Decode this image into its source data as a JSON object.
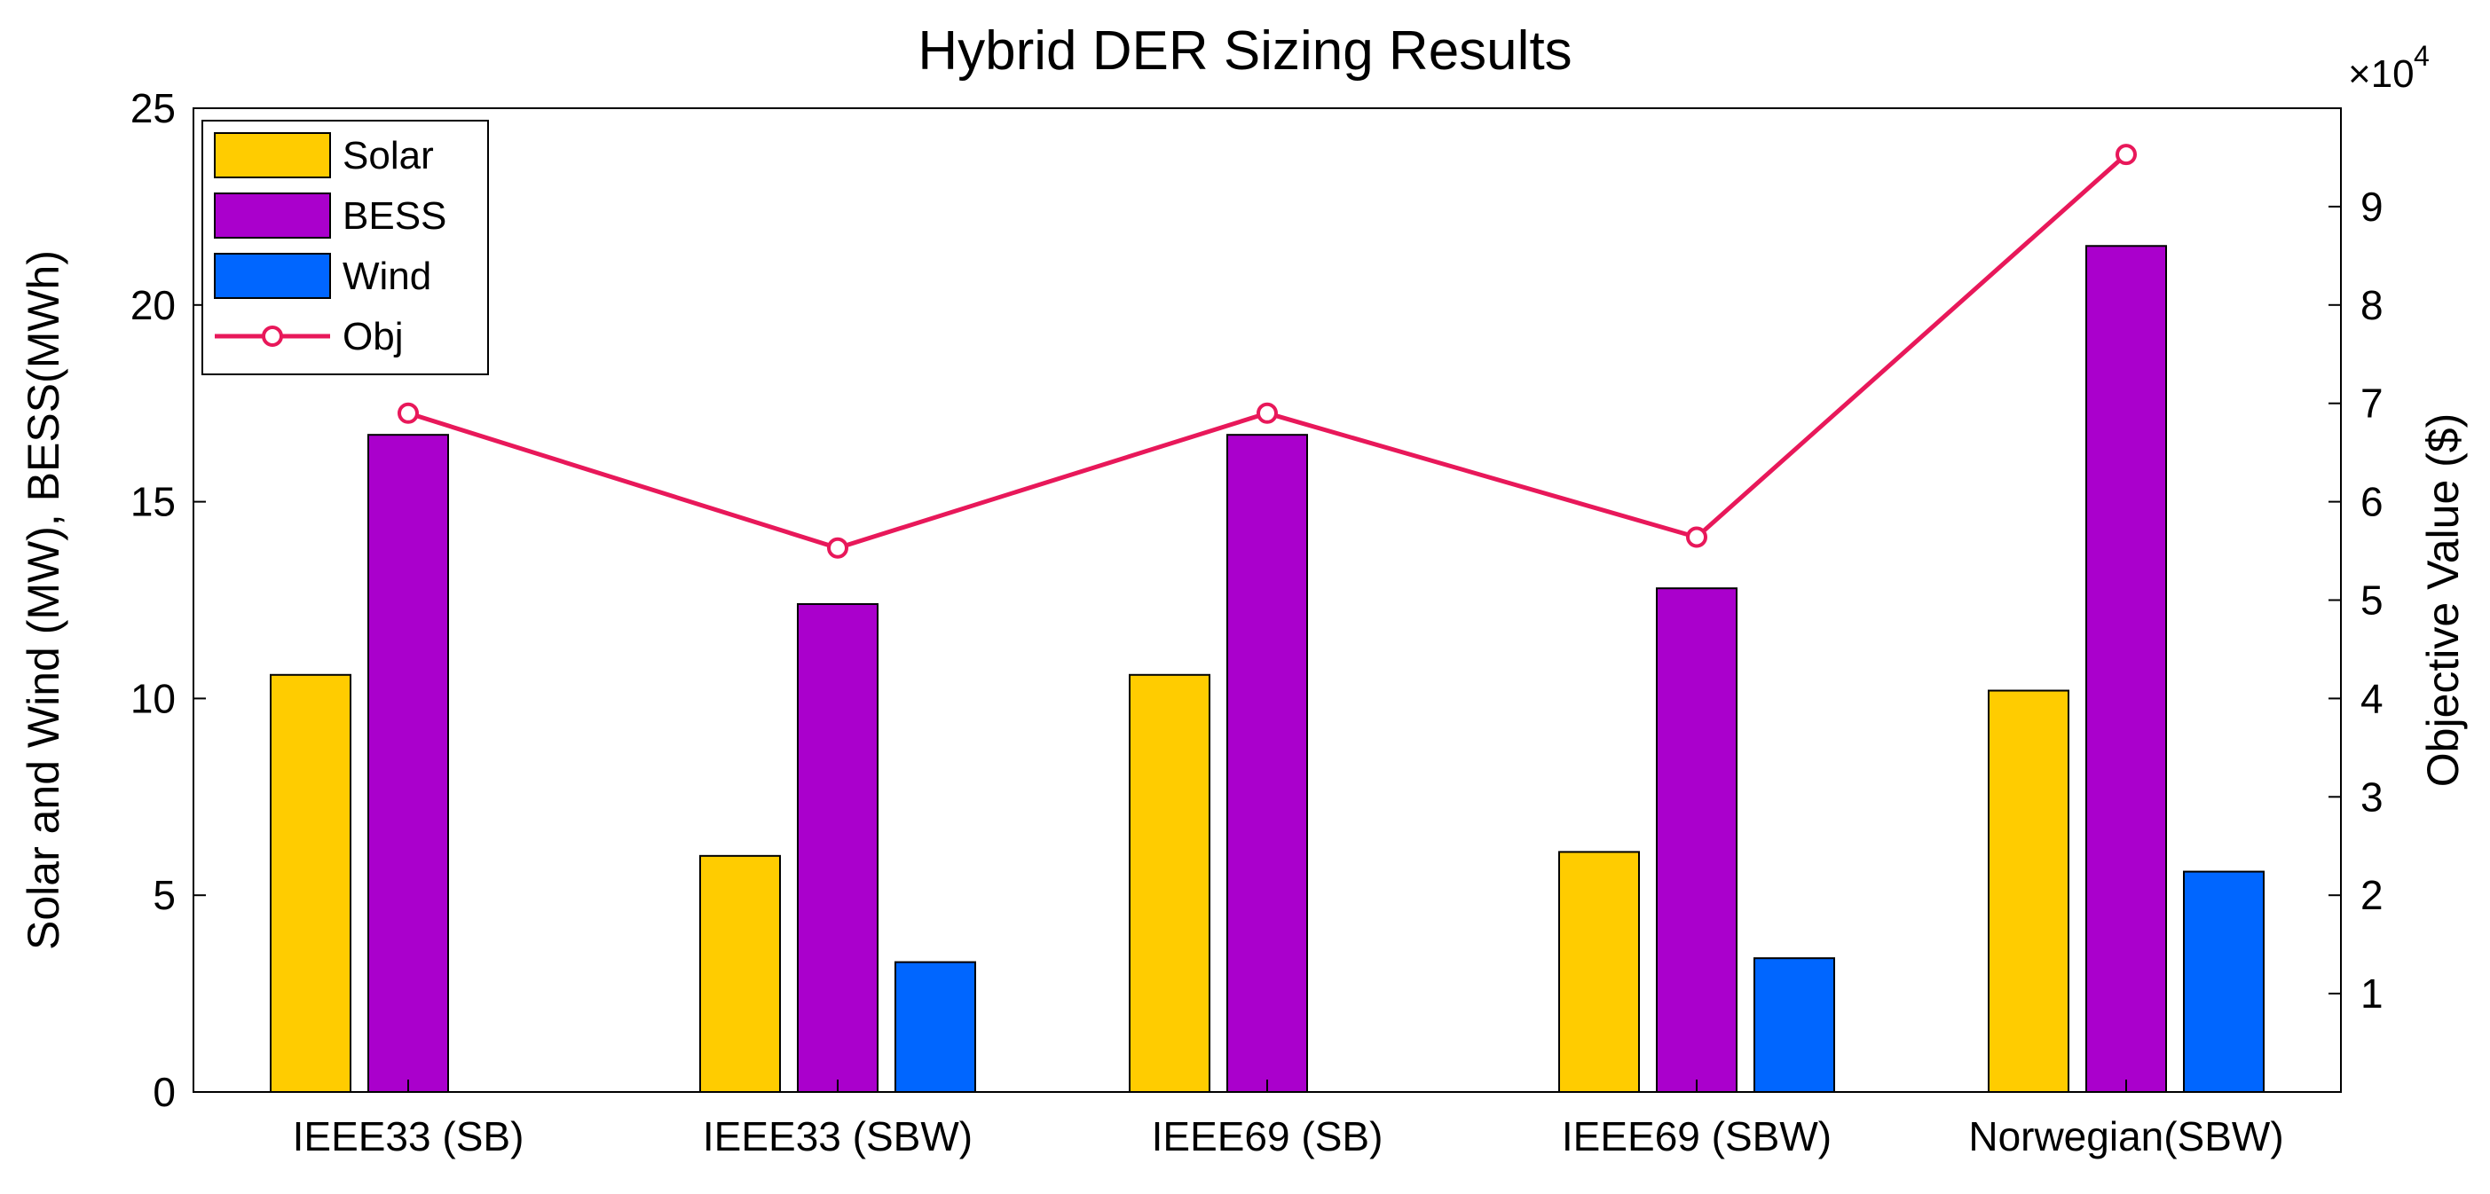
{
  "chart_data": {
    "type": "bar",
    "title": "Hybrid DER Sizing Results",
    "xlabel": "",
    "ylabel": "Solar and Wind (MW), BESS(MWh)",
    "y2label": "Objective Value ($)",
    "y2_exponent_label": "×10",
    "y2_exponent_power": "4",
    "ylim": [
      0,
      25
    ],
    "y2lim": [
      0,
      100000
    ],
    "yticks": [
      0,
      5,
      10,
      15,
      20,
      25
    ],
    "y2ticks": [
      1,
      2,
      3,
      4,
      5,
      6,
      7,
      8,
      9
    ],
    "categories": [
      "IEEE33 (SB)",
      "IEEE33 (SBW)",
      "IEEE69 (SB)",
      "IEEE69 (SBW)",
      "Norwegian(SBW)"
    ],
    "series": [
      {
        "name": "Solar",
        "axis": "left",
        "color": "#FFCC00",
        "values": [
          10.6,
          6.0,
          10.6,
          6.1,
          10.2
        ]
      },
      {
        "name": "BESS",
        "axis": "left",
        "color": "#AA00CC",
        "values": [
          16.7,
          12.4,
          16.7,
          12.8,
          21.5
        ]
      },
      {
        "name": "Wind",
        "axis": "left",
        "color": "#0066FF",
        "values": [
          0,
          3.3,
          0,
          3.4,
          5.6
        ]
      }
    ],
    "line_series": {
      "name": "Obj",
      "axis": "right",
      "color": "#E8185A",
      "marker": "circle",
      "values": [
        69000,
        55300,
        69000,
        56400,
        95300
      ]
    },
    "legend_position": "top-left",
    "grid": false
  }
}
